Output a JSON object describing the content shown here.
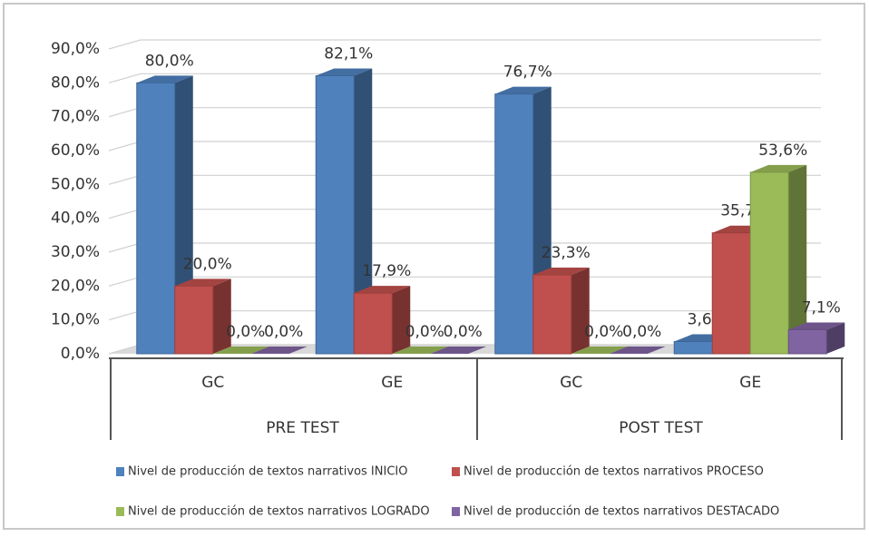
{
  "chart_data": {
    "type": "bar",
    "categories": [
      "GC",
      "GE",
      "GC",
      "GE"
    ],
    "groups": [
      "PRE TEST",
      "POST TEST"
    ],
    "series": [
      {
        "name": "Nivel de producción de textos narrativos INICIO",
        "color": "#4f81bd",
        "values": [
          80.0,
          82.1,
          76.7,
          3.6
        ],
        "value_labels": [
          "80,0%",
          "82,1%",
          "76,7%",
          "3,6%"
        ]
      },
      {
        "name": "Nivel de producción de textos narrativos PROCESO",
        "color": "#c0504d",
        "values": [
          20.0,
          17.9,
          23.3,
          35.7
        ],
        "value_labels": [
          "20,0%",
          "17,9%",
          "23,3%",
          "35,7%"
        ]
      },
      {
        "name": "Nivel de producción de textos narrativos LOGRADO",
        "color": "#9bbb59",
        "values": [
          0.0,
          0.0,
          0.0,
          53.6
        ],
        "value_labels": [
          "0,0%",
          "0,0%",
          "0,0%",
          "53,6%"
        ]
      },
      {
        "name": "Nivel de producción de textos narrativos DESTACADO",
        "color": "#8064a2",
        "values": [
          0.0,
          0.0,
          0.0,
          7.1
        ],
        "value_labels": [
          "0,0%",
          "0,0%",
          "0,0%",
          "7,1%"
        ]
      }
    ],
    "ylim": [
      0,
      90
    ],
    "yticks": [
      {
        "value": 0,
        "label": "0,0%"
      },
      {
        "value": 10,
        "label": "10,0%"
      },
      {
        "value": 20,
        "label": "20,0%"
      },
      {
        "value": 30,
        "label": "30,0%"
      },
      {
        "value": 40,
        "label": "40,0%"
      },
      {
        "value": 50,
        "label": "50,0%"
      },
      {
        "value": 60,
        "label": "60,0%"
      },
      {
        "value": 70,
        "label": "70,0%"
      },
      {
        "value": 80,
        "label": "80,0%"
      },
      {
        "value": 90,
        "label": "90,0%"
      }
    ],
    "grid": true
  }
}
